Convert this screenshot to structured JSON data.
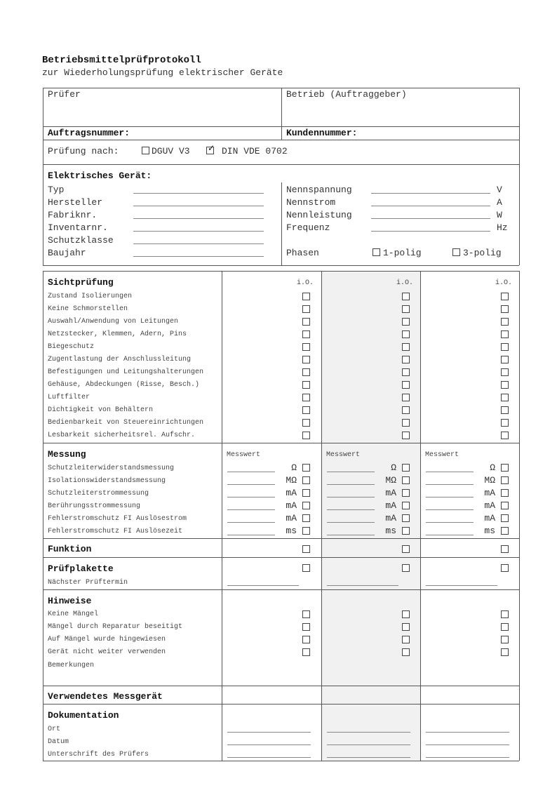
{
  "header": {
    "title": "Betriebsmittelprüfprotokoll",
    "subtitle": "zur Wiederholungsprüfung elektrischer Geräte"
  },
  "top": {
    "pruefer": "Prüfer",
    "betrieb": "Betrieb (Auftraggeber)",
    "auftragsnummer": "Auftragsnummer:",
    "kundennummer": "Kundennummer:",
    "pruefung_nach": "Prüfung nach:",
    "standards": [
      {
        "label": "DGUV V3",
        "checked": false
      },
      {
        "label": "DIN VDE 0702",
        "checked": true
      }
    ]
  },
  "geraet": {
    "heading": "Elektrisches Gerät:",
    "left_fields": [
      "Typ",
      "Hersteller",
      "Fabriknr.",
      "Inventarnr.",
      "Schutzklasse",
      "Baujahr"
    ],
    "right_fields": [
      {
        "label": "Nennspannung",
        "unit": "V"
      },
      {
        "label": "Nennstrom",
        "unit": "A"
      },
      {
        "label": "Nennleistung",
        "unit": "W"
      },
      {
        "label": "Frequenz",
        "unit": "Hz"
      }
    ],
    "phasen": "Phasen",
    "phase_options": [
      {
        "label": "1-polig",
        "checked": false
      },
      {
        "label": "3-polig",
        "checked": false
      }
    ]
  },
  "sicht": {
    "heading": "Sichtprüfung",
    "col_label": "i.O.",
    "items": [
      "Zustand Isolierungen",
      "Keine Schmorstellen",
      "Auswahl/Anwendung von Leitungen",
      "Netzstecker, Klemmen, Adern, Pins",
      "Biegeschutz",
      "Zugentlastung der Anschlussleitung",
      "Befestigungen und Leitungshalterungen",
      "Gehäuse, Abdeckungen (Risse, Besch.)",
      "Luftfilter",
      "Dichtigkeit von Behältern",
      "Bedienbarkeit von Steuereinrichtungen",
      "Lesbarkeit sicherheitsrel.  Aufschr."
    ]
  },
  "messung": {
    "heading": "Messung",
    "col_label": "Messwert",
    "items": [
      {
        "label": "Schutzleiterwiderstandsmessung",
        "unit": "Ω"
      },
      {
        "label": "Isolationswiderstandsmessung",
        "unit": "MΩ"
      },
      {
        "label": "Schutzleiterstrommessung",
        "unit": "mA"
      },
      {
        "label": "Berührungsstrommessung",
        "unit": "mA"
      },
      {
        "label": "Fehlerstromschutz FI Auslösestrom",
        "unit": "mA"
      },
      {
        "label": "Fehlerstromschutz FI Auslösezeit",
        "unit": "ms"
      }
    ]
  },
  "funktion": {
    "heading": "Funktion"
  },
  "plakette": {
    "heading": "Prüfplakette",
    "next": "Nächster Prüftermin"
  },
  "hinweise": {
    "heading": "Hinweise",
    "items": [
      "Keine Mängel",
      "Mängel durch Reparatur beseitigt",
      "Auf Mängel wurde hingewiesen",
      "Gerät nicht weiter verwenden"
    ],
    "bemerkungen": "Bemerkungen"
  },
  "messgeraet": {
    "heading": "Verwendetes Messgerät"
  },
  "doku": {
    "heading": "Dokumentation",
    "items": [
      "Ort",
      "Datum",
      "Unterschrift des Prüfers"
    ]
  },
  "colors": {
    "shaded_column": "#f1f1f1",
    "lines": "#555555"
  }
}
